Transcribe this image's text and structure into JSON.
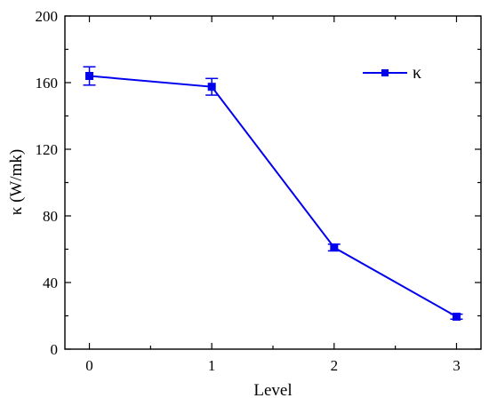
{
  "chart_data": {
    "type": "line",
    "title": "",
    "xlabel": "Level",
    "ylabel": "κ (W/mk)",
    "xlim": [
      -0.2,
      3.2
    ],
    "ylim": [
      0,
      200
    ],
    "x_ticks": [
      "0",
      "1",
      "2",
      "3"
    ],
    "y_ticks": [
      "0",
      "40",
      "80",
      "120",
      "160",
      "200"
    ],
    "grid": false,
    "legend_position": "top-right",
    "color": "#0000ee",
    "series": [
      {
        "name": "κ",
        "x": [
          0,
          1,
          2,
          3
        ],
        "y": [
          164,
          157.5,
          61,
          19.5
        ],
        "error": [
          5.5,
          5,
          2,
          1.5
        ]
      }
    ]
  }
}
